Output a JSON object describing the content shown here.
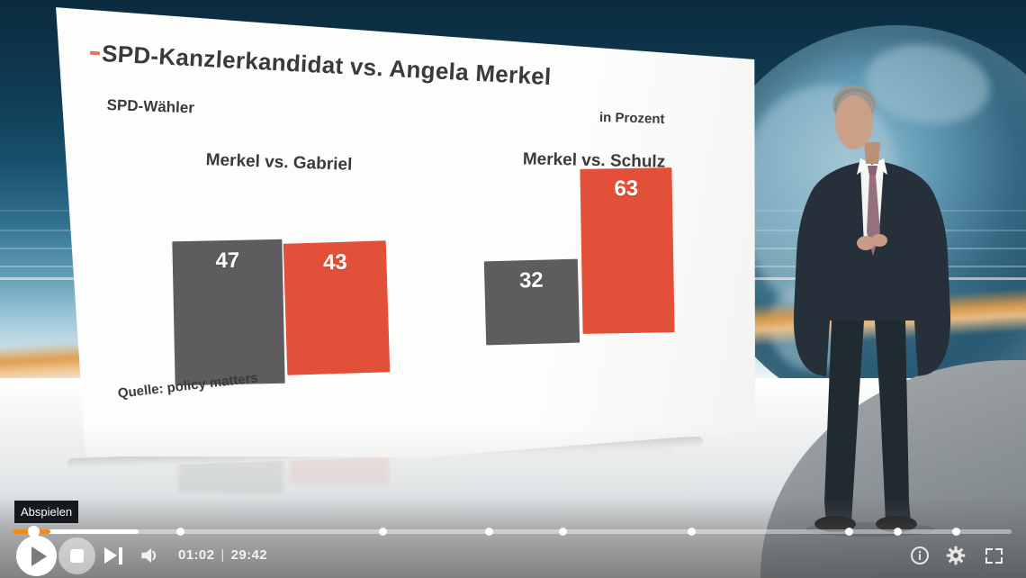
{
  "video_player": {
    "tooltip": "Abspielen",
    "time_current": "01:02",
    "time_separator": "|",
    "time_duration": "29:42",
    "progress": {
      "played_pct": 3.8,
      "buffered_pct": 12.6,
      "knob_pct": 1.7,
      "chapter_markers_pct": [
        16.8,
        37.0,
        47.7,
        55.0,
        67.9,
        83.7,
        88.6,
        94.4
      ],
      "accent_color": "#f08c1e"
    },
    "icons": {
      "play": "play-icon",
      "stop": "stop-icon",
      "next": "skip-next-icon",
      "volume": "volume-icon",
      "info": "info-icon",
      "settings": "gear-icon",
      "fullscreen": "fullscreen-icon"
    }
  },
  "chart_data": {
    "type": "bar",
    "title": "SPD-Kanzlerkandidat vs. Angela Merkel",
    "subtitle": "SPD-Wähler",
    "unit_label": "in Prozent",
    "source": "Quelle: policy matters",
    "grid": false,
    "legend_position": "none",
    "groups": [
      {
        "label": "Merkel vs. Gabriel",
        "bars": [
          {
            "name": "Merkel",
            "value": 47,
            "color": "#5e5c5e"
          },
          {
            "name": "Gabriel",
            "value": 43,
            "color": "#e2503a"
          }
        ]
      },
      {
        "label": "Merkel vs. Schulz",
        "bars": [
          {
            "name": "Merkel",
            "value": 32,
            "color": "#5e5c5e"
          },
          {
            "name": "Schulz",
            "value": 63,
            "color": "#e2503a"
          }
        ]
      }
    ]
  }
}
